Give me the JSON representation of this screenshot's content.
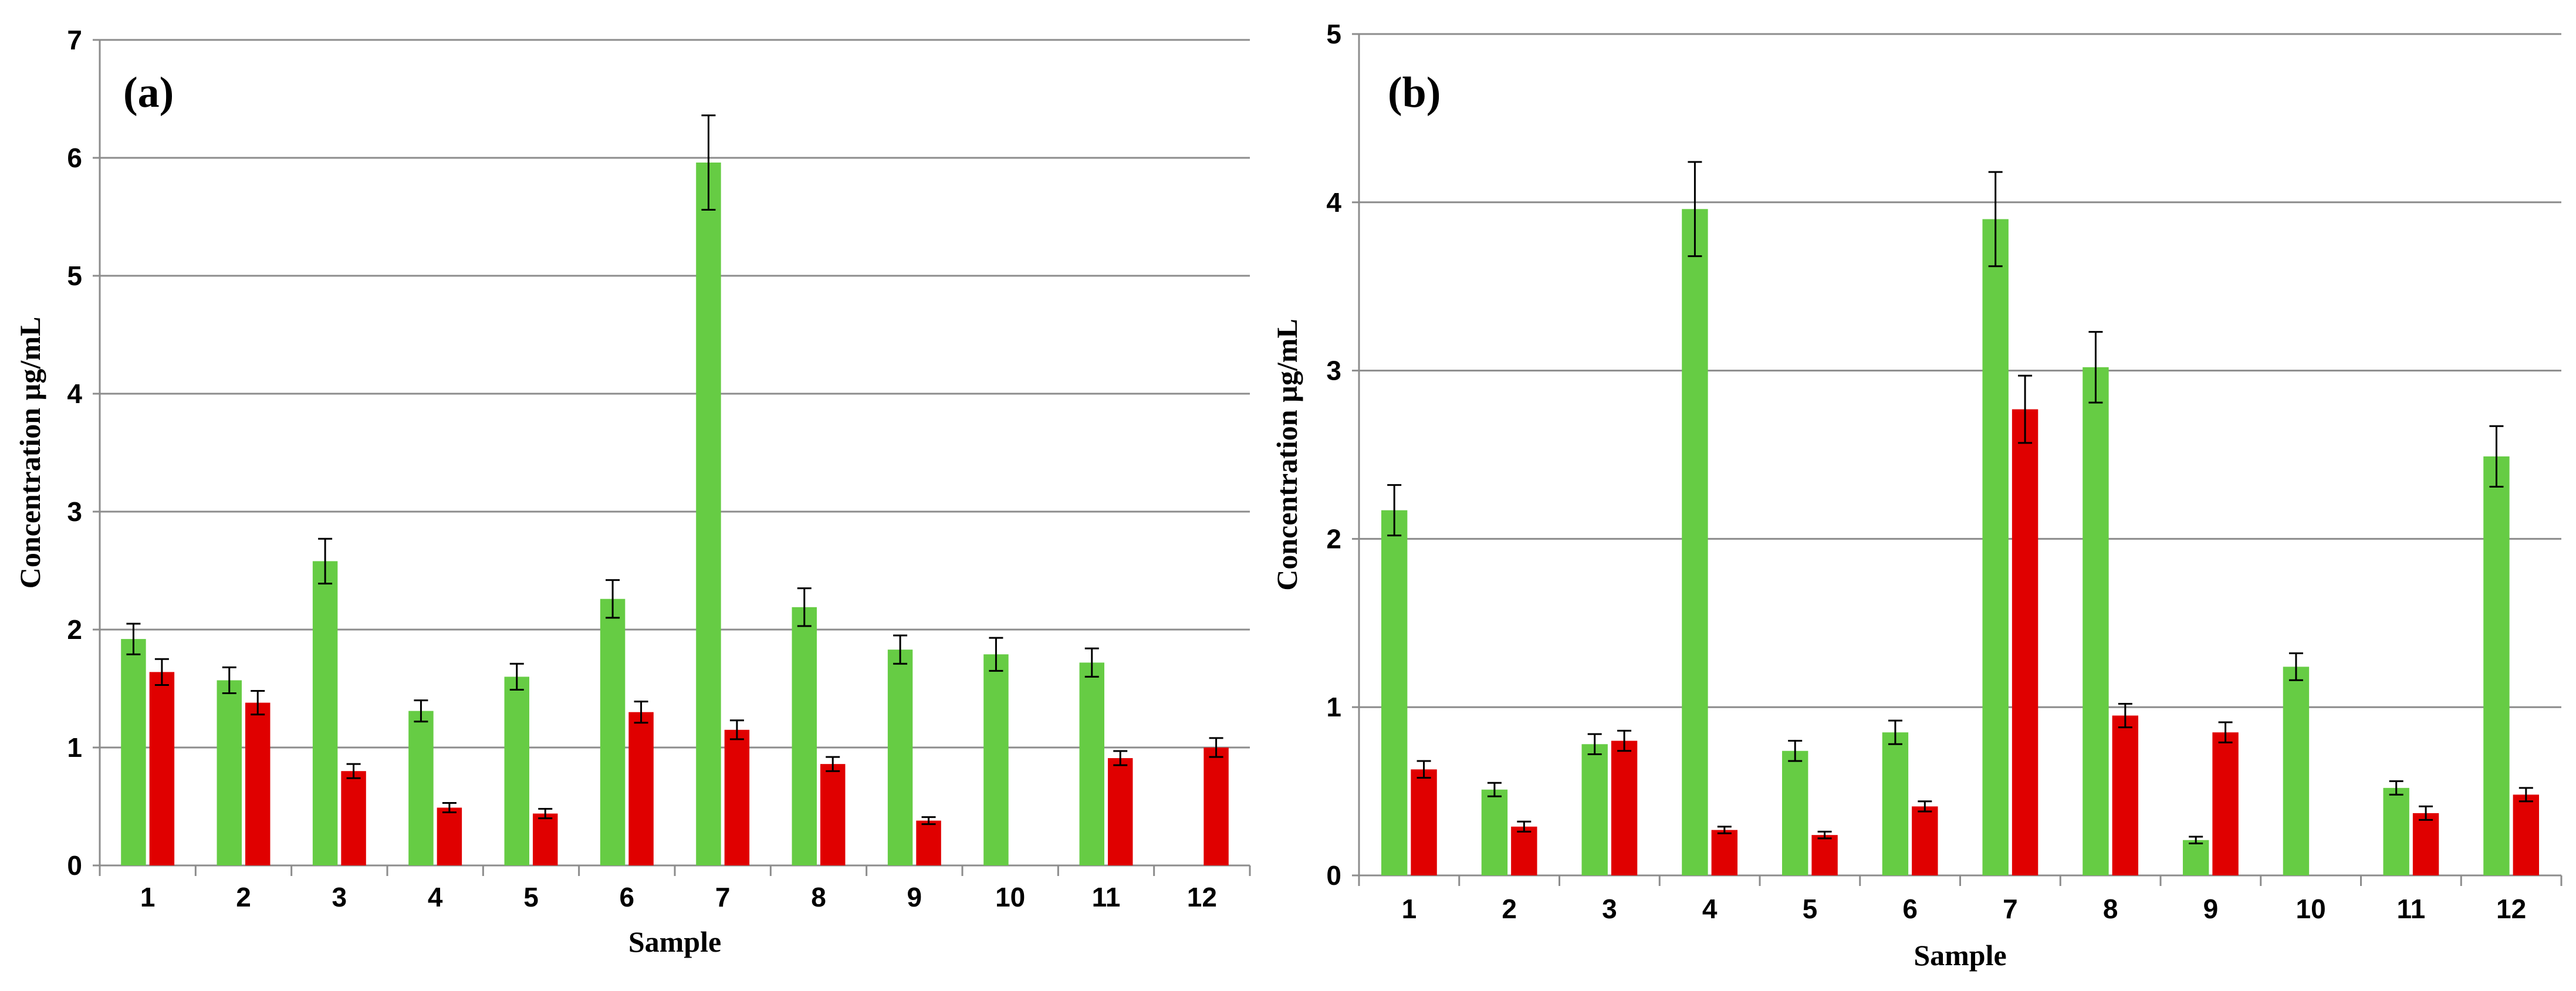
{
  "chart_data": [
    {
      "type": "bar",
      "panel_label": "(a)",
      "categories": [
        "1",
        "2",
        "3",
        "4",
        "5",
        "6",
        "7",
        "8",
        "9",
        "10",
        "11",
        "12"
      ],
      "xlabel": "Sample",
      "ylabel": "Concentration µg/mL",
      "ylim": [
        0,
        7
      ],
      "yticks": [
        "0",
        "1",
        "2",
        "3",
        "4",
        "5",
        "6",
        "7"
      ],
      "grid": true,
      "legend": "none",
      "series": [
        {
          "color": "#66cc44",
          "values": [
            1.92,
            1.57,
            2.58,
            1.31,
            1.6,
            2.26,
            5.96,
            2.19,
            1.83,
            1.79,
            1.72,
            null
          ],
          "errors": [
            0.13,
            0.11,
            0.19,
            0.09,
            0.11,
            0.16,
            0.4,
            0.16,
            0.12,
            0.14,
            0.12,
            null
          ]
        },
        {
          "color": "#e00000",
          "values": [
            1.64,
            1.38,
            0.8,
            0.49,
            0.44,
            1.3,
            1.15,
            0.86,
            0.38,
            null,
            0.91,
            1.0
          ],
          "errors": [
            0.11,
            0.1,
            0.06,
            0.04,
            0.04,
            0.09,
            0.08,
            0.06,
            0.03,
            null,
            0.06,
            0.08
          ]
        }
      ]
    },
    {
      "type": "bar",
      "panel_label": "(b)",
      "categories": [
        "1",
        "2",
        "3",
        "4",
        "5",
        "6",
        "7",
        "8",
        "9",
        "10",
        "11",
        "12"
      ],
      "xlabel": "Sample",
      "ylabel": "Concentration µg/mL",
      "ylim": [
        0,
        5
      ],
      "yticks": [
        "0",
        "1",
        "2",
        "3",
        "4",
        "5"
      ],
      "grid": true,
      "legend": "none",
      "series": [
        {
          "color": "#66cc44",
          "values": [
            2.17,
            0.51,
            0.78,
            3.96,
            0.74,
            0.85,
            3.9,
            3.02,
            0.21,
            1.24,
            0.52,
            2.49
          ],
          "errors": [
            0.15,
            0.04,
            0.06,
            0.28,
            0.06,
            0.07,
            0.28,
            0.21,
            0.02,
            0.08,
            0.04,
            0.18
          ]
        },
        {
          "color": "#e00000",
          "values": [
            0.63,
            0.29,
            0.8,
            0.27,
            0.24,
            0.41,
            2.77,
            0.95,
            0.85,
            null,
            0.37,
            0.48
          ],
          "errors": [
            0.05,
            0.03,
            0.06,
            0.02,
            0.02,
            0.03,
            0.2,
            0.07,
            0.06,
            null,
            0.04,
            0.04
          ]
        }
      ]
    }
  ]
}
